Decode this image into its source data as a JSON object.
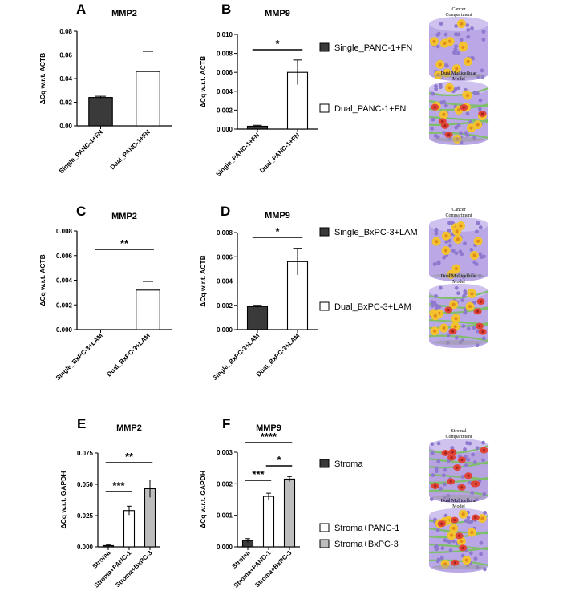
{
  "chart_data": [
    {
      "panel": "A",
      "type": "bar",
      "title": "MMP2",
      "ylabel": "ΔCq w.r.t. ACTB",
      "categories": [
        "Single_PANC-1+FN",
        "Dual_PANC-1+FN"
      ],
      "values": [
        0.024,
        0.046
      ],
      "errors": [
        0.001,
        0.017
      ],
      "fills": [
        "#3a3a3a",
        "#ffffff"
      ],
      "ylim": [
        0,
        0.08
      ],
      "yticks": [
        "0.00",
        "0.02",
        "0.04",
        "0.06",
        "0.08"
      ],
      "significance": []
    },
    {
      "panel": "B",
      "type": "bar",
      "title": "MMP9",
      "ylabel": "ΔCq w.r.t. ACTB",
      "categories": [
        "Single_PANC-1+FN",
        "Dual_PANC-1+FN"
      ],
      "values": [
        0.0003,
        0.006
      ],
      "errors": [
        0.0001,
        0.0013
      ],
      "fills": [
        "#3a3a3a",
        "#ffffff"
      ],
      "ylim": [
        0,
        0.01
      ],
      "yticks": [
        "0.000",
        "0.002",
        "0.004",
        "0.006",
        "0.008",
        "0.010"
      ],
      "significance": [
        {
          "from": 0,
          "to": 1,
          "label": "*"
        }
      ]
    },
    {
      "panel": "C",
      "type": "bar",
      "title": "MMP2",
      "ylabel": "ΔCq w.r.t. ACTB",
      "categories": [
        "Single_BxPC-3+LAM",
        "Dual_BxPC-3+LAM"
      ],
      "values": [
        0.0,
        0.0032
      ],
      "errors": [
        0.0,
        0.0007
      ],
      "fills": [
        "#3a3a3a",
        "#ffffff"
      ],
      "ylim": [
        0,
        0.008
      ],
      "yticks": [
        "0.000",
        "0.002",
        "0.004",
        "0.006",
        "0.008"
      ],
      "significance": [
        {
          "from": 0,
          "to": 1,
          "label": "**"
        }
      ]
    },
    {
      "panel": "D",
      "type": "bar",
      "title": "MMP9",
      "ylabel": "ΔCq w.r.t. ACTB",
      "categories": [
        "Single_BxPC-3+LAM",
        "Dual_BxPC-3+LAM"
      ],
      "values": [
        0.0019,
        0.0056
      ],
      "errors": [
        0.0001,
        0.0011
      ],
      "fills": [
        "#3a3a3a",
        "#ffffff"
      ],
      "ylim": [
        0,
        0.008
      ],
      "yticks": [
        "0.000",
        "0.002",
        "0.004",
        "0.006",
        "0.008"
      ],
      "significance": [
        {
          "from": 0,
          "to": 1,
          "label": "*"
        }
      ]
    },
    {
      "panel": "E",
      "type": "bar",
      "title": "MMP2",
      "ylabel": "ΔCq w.r.t. GAPDH",
      "categories": [
        "Stroma",
        "Stroma+PANC-1",
        "Stroma+BxPC-3"
      ],
      "values": [
        0.001,
        0.029,
        0.0465
      ],
      "errors": [
        0.0005,
        0.0035,
        0.007
      ],
      "fills": [
        "#3a3a3a",
        "#ffffff",
        "#bdbdbd"
      ],
      "ylim": [
        0,
        0.075
      ],
      "yticks": [
        "0.000",
        "0.025",
        "0.050",
        "0.075"
      ],
      "significance": [
        {
          "from": 0,
          "to": 1,
          "label": "***"
        },
        {
          "from": 0,
          "to": 2,
          "label": "**"
        }
      ]
    },
    {
      "panel": "F",
      "type": "bar",
      "title": "MMP9",
      "ylabel": "ΔCq w.r.t. GAPDH",
      "categories": [
        "Stroma",
        "Stroma+PANC-1",
        "Stroma+BxPC-3"
      ],
      "values": [
        0.0002,
        0.0016,
        0.00215
      ],
      "errors": [
        6e-05,
        0.0001,
        8e-05
      ],
      "fills": [
        "#3a3a3a",
        "#ffffff",
        "#bdbdbd"
      ],
      "ylim": [
        0,
        0.003
      ],
      "yticks": [
        "0.000",
        "0.001",
        "0.002",
        "0.003"
      ],
      "significance": [
        {
          "from": 0,
          "to": 1,
          "label": "***"
        },
        {
          "from": 1,
          "to": 2,
          "label": "*"
        },
        {
          "from": 0,
          "to": 2,
          "label": "****"
        }
      ]
    }
  ],
  "legends": [
    {
      "items": [
        {
          "label": "Single_PANC-1+FN",
          "fill": "#3a3a3a"
        },
        {
          "label": "Dual_PANC-1+FN",
          "fill": "#ffffff"
        }
      ]
    },
    {
      "items": [
        {
          "label": "Single_BxPC-3+LAM",
          "fill": "#3a3a3a"
        },
        {
          "label": "Dual_BxPC-3+LAM",
          "fill": "#ffffff"
        }
      ]
    },
    {
      "items": [
        {
          "label": "Stroma",
          "fill": "#3a3a3a"
        },
        {
          "label": "Stroma+PANC-1",
          "fill": "#ffffff"
        },
        {
          "label": "Stroma+BxPC-3",
          "fill": "#bdbdbd"
        }
      ]
    }
  ],
  "model_images": [
    {
      "caption": [
        "Cancer",
        "Compartment"
      ],
      "kind": "cancer"
    },
    {
      "caption": [
        "Dual Multicellular",
        "Model"
      ],
      "kind": "dual"
    },
    {
      "caption": [
        "Cancer",
        "Compartment"
      ],
      "kind": "cancer"
    },
    {
      "caption": [
        "Dual Multicellular",
        "Model"
      ],
      "kind": "dual"
    },
    {
      "caption": [
        "Stromal",
        "Compartment"
      ],
      "kind": "stromal"
    },
    {
      "caption": [
        "Dual Multicellular",
        "Model"
      ],
      "kind": "dual"
    }
  ],
  "colors": {
    "axis": "#000000",
    "dark_bar": "#3a3a3a",
    "grey_bar": "#bdbdbd",
    "cell_purple": "#a48fd6",
    "cell_yellow": "#f2c230",
    "cell_red": "#e0453a",
    "fiber_green": "#7fbf6a"
  }
}
